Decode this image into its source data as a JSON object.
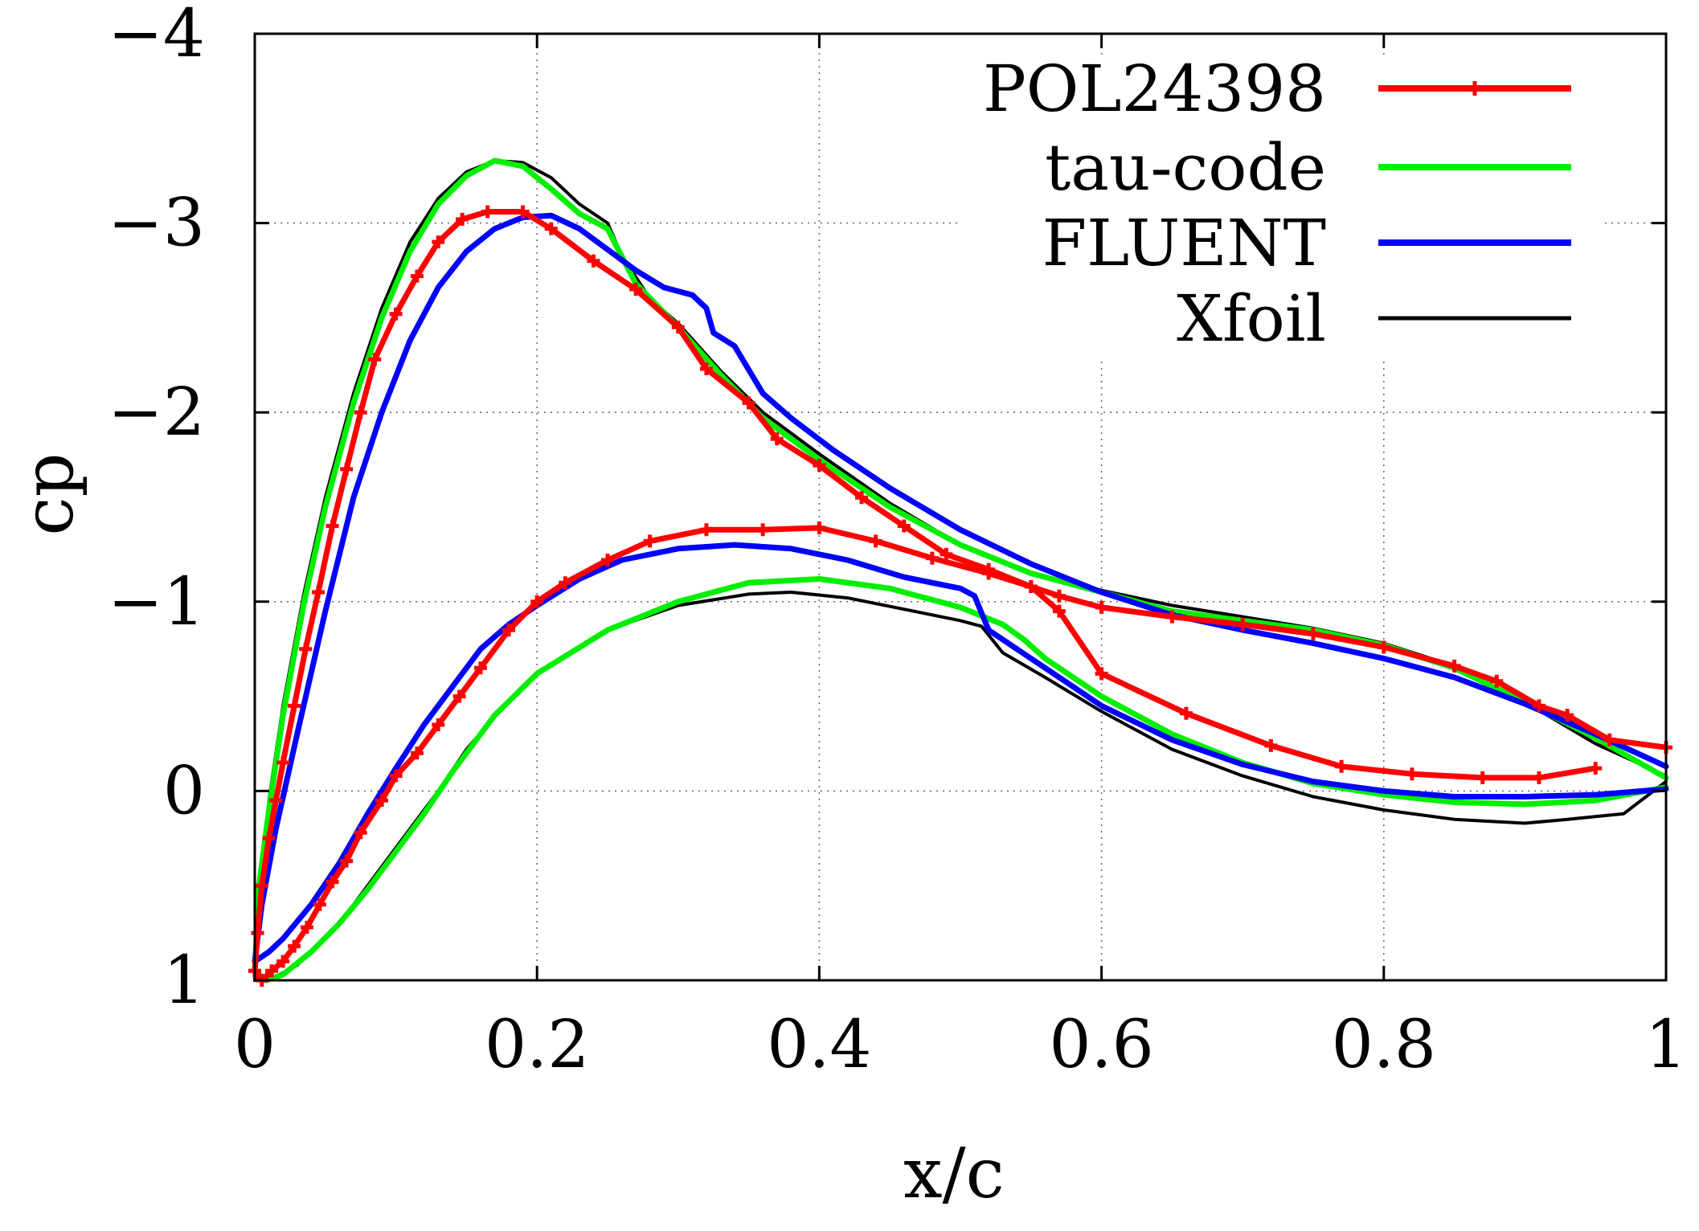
{
  "chart_data": {
    "type": "line",
    "xlabel": "x/c",
    "ylabel": "cp",
    "xlim": [
      0,
      1
    ],
    "ylim": [
      1,
      -4
    ],
    "y_inverted": true,
    "grid": true,
    "legend_position": "top-right",
    "x_ticks": [
      {
        "value": 0,
        "label": "0"
      },
      {
        "value": 0.2,
        "label": "0.2"
      },
      {
        "value": 0.4,
        "label": "0.4"
      },
      {
        "value": 0.6,
        "label": "0.6"
      },
      {
        "value": 0.8,
        "label": "0.8"
      },
      {
        "value": 1,
        "label": "1"
      }
    ],
    "y_ticks": [
      {
        "value": -4,
        "label": "−4"
      },
      {
        "value": -3,
        "label": "−3"
      },
      {
        "value": -2,
        "label": "−2"
      },
      {
        "value": -1,
        "label": "−1"
      },
      {
        "value": 0,
        "label": "0"
      },
      {
        "value": 1,
        "label": "1"
      }
    ],
    "series": [
      {
        "name": "POL24398",
        "color": "#ff0000",
        "markers": true,
        "upper": [
          [
            0,
            0.95
          ],
          [
            0.002,
            0.75
          ],
          [
            0.005,
            0.5
          ],
          [
            0.01,
            0.25
          ],
          [
            0.015,
            0.05
          ],
          [
            0.02,
            -0.15
          ],
          [
            0.028,
            -0.45
          ],
          [
            0.036,
            -0.75
          ],
          [
            0.045,
            -1.05
          ],
          [
            0.055,
            -1.4
          ],
          [
            0.065,
            -1.7
          ],
          [
            0.075,
            -2.0
          ],
          [
            0.085,
            -2.28
          ],
          [
            0.1,
            -2.52
          ],
          [
            0.115,
            -2.72
          ],
          [
            0.13,
            -2.9
          ],
          [
            0.147,
            -3.02
          ],
          [
            0.165,
            -3.06
          ],
          [
            0.19,
            -3.06
          ],
          [
            0.21,
            -2.97
          ],
          [
            0.24,
            -2.8
          ],
          [
            0.27,
            -2.65
          ],
          [
            0.3,
            -2.45
          ],
          [
            0.32,
            -2.23
          ],
          [
            0.35,
            -2.05
          ],
          [
            0.37,
            -1.86
          ],
          [
            0.4,
            -1.72
          ],
          [
            0.43,
            -1.55
          ],
          [
            0.46,
            -1.4
          ],
          [
            0.49,
            -1.25
          ],
          [
            0.52,
            -1.17
          ],
          [
            0.55,
            -1.08
          ],
          [
            0.57,
            -1.03
          ],
          [
            0.6,
            -0.97
          ],
          [
            0.65,
            -0.92
          ],
          [
            0.7,
            -0.88
          ],
          [
            0.75,
            -0.83
          ],
          [
            0.8,
            -0.76
          ],
          [
            0.85,
            -0.66
          ],
          [
            0.88,
            -0.58
          ],
          [
            0.91,
            -0.45
          ],
          [
            0.93,
            -0.4
          ],
          [
            0.96,
            -0.27
          ],
          [
            1.0,
            -0.23
          ]
        ],
        "lower": [
          [
            0,
            0.95
          ],
          [
            0.005,
            1.0
          ],
          [
            0.012,
            0.95
          ],
          [
            0.02,
            0.9
          ],
          [
            0.028,
            0.82
          ],
          [
            0.037,
            0.72
          ],
          [
            0.046,
            0.6
          ],
          [
            0.055,
            0.48
          ],
          [
            0.065,
            0.37
          ],
          [
            0.075,
            0.22
          ],
          [
            0.09,
            0.05
          ],
          [
            0.1,
            -0.08
          ],
          [
            0.115,
            -0.2
          ],
          [
            0.13,
            -0.35
          ],
          [
            0.145,
            -0.5
          ],
          [
            0.16,
            -0.65
          ],
          [
            0.18,
            -0.85
          ],
          [
            0.2,
            -1.0
          ],
          [
            0.22,
            -1.1
          ],
          [
            0.25,
            -1.22
          ],
          [
            0.28,
            -1.32
          ],
          [
            0.32,
            -1.38
          ],
          [
            0.36,
            -1.38
          ],
          [
            0.4,
            -1.39
          ],
          [
            0.44,
            -1.32
          ],
          [
            0.48,
            -1.23
          ],
          [
            0.52,
            -1.15
          ],
          [
            0.55,
            -1.08
          ],
          [
            0.57,
            -0.95
          ],
          [
            0.6,
            -0.62
          ],
          [
            0.66,
            -0.41
          ],
          [
            0.72,
            -0.24
          ],
          [
            0.77,
            -0.13
          ],
          [
            0.82,
            -0.09
          ],
          [
            0.87,
            -0.07
          ],
          [
            0.91,
            -0.07
          ],
          [
            0.95,
            -0.12
          ]
        ]
      },
      {
        "name": "tau-code",
        "color": "#00ee00",
        "markers": false,
        "upper": [
          [
            0,
            0.95
          ],
          [
            0.003,
            0.5
          ],
          [
            0.01,
            0.1
          ],
          [
            0.02,
            -0.4
          ],
          [
            0.035,
            -1.0
          ],
          [
            0.05,
            -1.5
          ],
          [
            0.07,
            -2.05
          ],
          [
            0.09,
            -2.5
          ],
          [
            0.11,
            -2.85
          ],
          [
            0.13,
            -3.1
          ],
          [
            0.15,
            -3.25
          ],
          [
            0.17,
            -3.33
          ],
          [
            0.19,
            -3.3
          ],
          [
            0.21,
            -3.18
          ],
          [
            0.23,
            -3.05
          ],
          [
            0.25,
            -2.97
          ],
          [
            0.27,
            -2.68
          ],
          [
            0.3,
            -2.45
          ],
          [
            0.33,
            -2.2
          ],
          [
            0.36,
            -1.97
          ],
          [
            0.4,
            -1.75
          ],
          [
            0.45,
            -1.5
          ],
          [
            0.5,
            -1.3
          ],
          [
            0.55,
            -1.15
          ],
          [
            0.6,
            -1.05
          ],
          [
            0.65,
            -0.95
          ],
          [
            0.7,
            -0.9
          ],
          [
            0.75,
            -0.85
          ],
          [
            0.8,
            -0.77
          ],
          [
            0.85,
            -0.65
          ],
          [
            0.9,
            -0.47
          ],
          [
            0.95,
            -0.28
          ],
          [
            1.0,
            -0.07
          ]
        ],
        "lower": [
          [
            0,
            0.95
          ],
          [
            0.008,
            1.0
          ],
          [
            0.02,
            0.97
          ],
          [
            0.04,
            0.85
          ],
          [
            0.06,
            0.7
          ],
          [
            0.08,
            0.52
          ],
          [
            0.1,
            0.32
          ],
          [
            0.12,
            0.12
          ],
          [
            0.14,
            -0.1
          ],
          [
            0.17,
            -0.4
          ],
          [
            0.2,
            -0.62
          ],
          [
            0.25,
            -0.85
          ],
          [
            0.3,
            -1.0
          ],
          [
            0.35,
            -1.1
          ],
          [
            0.4,
            -1.12
          ],
          [
            0.45,
            -1.07
          ],
          [
            0.5,
            -0.97
          ],
          [
            0.53,
            -0.88
          ],
          [
            0.545,
            -0.8
          ],
          [
            0.56,
            -0.7
          ],
          [
            0.6,
            -0.5
          ],
          [
            0.65,
            -0.3
          ],
          [
            0.7,
            -0.15
          ],
          [
            0.75,
            -0.04
          ],
          [
            0.8,
            0.02
          ],
          [
            0.85,
            0.06
          ],
          [
            0.9,
            0.07
          ],
          [
            0.95,
            0.05
          ],
          [
            1.0,
            -0.02
          ]
        ]
      },
      {
        "name": "FLUENT",
        "color": "#0000ff",
        "markers": false,
        "upper": [
          [
            0,
            0.9
          ],
          [
            0.005,
            0.6
          ],
          [
            0.015,
            0.2
          ],
          [
            0.03,
            -0.3
          ],
          [
            0.05,
            -0.95
          ],
          [
            0.07,
            -1.55
          ],
          [
            0.09,
            -2.0
          ],
          [
            0.11,
            -2.38
          ],
          [
            0.13,
            -2.66
          ],
          [
            0.15,
            -2.85
          ],
          [
            0.17,
            -2.97
          ],
          [
            0.19,
            -3.03
          ],
          [
            0.21,
            -3.04
          ],
          [
            0.23,
            -2.97
          ],
          [
            0.25,
            -2.86
          ],
          [
            0.27,
            -2.75
          ],
          [
            0.29,
            -2.66
          ],
          [
            0.31,
            -2.62
          ],
          [
            0.32,
            -2.55
          ],
          [
            0.325,
            -2.42
          ],
          [
            0.34,
            -2.35
          ],
          [
            0.36,
            -2.1
          ],
          [
            0.38,
            -1.97
          ],
          [
            0.41,
            -1.8
          ],
          [
            0.45,
            -1.6
          ],
          [
            0.5,
            -1.38
          ],
          [
            0.55,
            -1.2
          ],
          [
            0.6,
            -1.05
          ],
          [
            0.65,
            -0.93
          ],
          [
            0.7,
            -0.85
          ],
          [
            0.75,
            -0.78
          ],
          [
            0.8,
            -0.7
          ],
          [
            0.85,
            -0.6
          ],
          [
            0.9,
            -0.46
          ],
          [
            0.95,
            -0.3
          ],
          [
            1.0,
            -0.13
          ]
        ],
        "lower": [
          [
            0,
            0.9
          ],
          [
            0.01,
            0.85
          ],
          [
            0.02,
            0.78
          ],
          [
            0.04,
            0.6
          ],
          [
            0.06,
            0.38
          ],
          [
            0.08,
            0.12
          ],
          [
            0.1,
            -0.12
          ],
          [
            0.12,
            -0.35
          ],
          [
            0.14,
            -0.55
          ],
          [
            0.16,
            -0.75
          ],
          [
            0.18,
            -0.88
          ],
          [
            0.2,
            -0.98
          ],
          [
            0.23,
            -1.12
          ],
          [
            0.26,
            -1.22
          ],
          [
            0.3,
            -1.28
          ],
          [
            0.34,
            -1.3
          ],
          [
            0.38,
            -1.28
          ],
          [
            0.42,
            -1.22
          ],
          [
            0.46,
            -1.13
          ],
          [
            0.5,
            -1.07
          ],
          [
            0.51,
            -1.03
          ],
          [
            0.52,
            -0.85
          ],
          [
            0.54,
            -0.75
          ],
          [
            0.57,
            -0.6
          ],
          [
            0.6,
            -0.45
          ],
          [
            0.65,
            -0.27
          ],
          [
            0.7,
            -0.14
          ],
          [
            0.75,
            -0.05
          ],
          [
            0.8,
            0.0
          ],
          [
            0.85,
            0.03
          ],
          [
            0.9,
            0.03
          ],
          [
            0.95,
            0.02
          ],
          [
            1.0,
            -0.01
          ]
        ]
      },
      {
        "name": "Xfoil",
        "color": "#000000",
        "markers": false,
        "upper": [
          [
            0,
            1.0
          ],
          [
            0.003,
            0.6
          ],
          [
            0.01,
            0.05
          ],
          [
            0.02,
            -0.45
          ],
          [
            0.035,
            -1.05
          ],
          [
            0.05,
            -1.55
          ],
          [
            0.07,
            -2.1
          ],
          [
            0.09,
            -2.55
          ],
          [
            0.11,
            -2.9
          ],
          [
            0.13,
            -3.13
          ],
          [
            0.15,
            -3.27
          ],
          [
            0.17,
            -3.33
          ],
          [
            0.19,
            -3.32
          ],
          [
            0.21,
            -3.24
          ],
          [
            0.23,
            -3.1
          ],
          [
            0.25,
            -3.0
          ],
          [
            0.26,
            -2.83
          ],
          [
            0.28,
            -2.6
          ],
          [
            0.3,
            -2.47
          ],
          [
            0.33,
            -2.22
          ],
          [
            0.36,
            -2.0
          ],
          [
            0.4,
            -1.78
          ],
          [
            0.45,
            -1.52
          ],
          [
            0.5,
            -1.3
          ],
          [
            0.55,
            -1.15
          ],
          [
            0.6,
            -1.06
          ],
          [
            0.65,
            -0.98
          ],
          [
            0.7,
            -0.92
          ],
          [
            0.75,
            -0.86
          ],
          [
            0.8,
            -0.78
          ],
          [
            0.85,
            -0.66
          ],
          [
            0.9,
            -0.47
          ],
          [
            0.95,
            -0.25
          ],
          [
            1.0,
            -0.08
          ]
        ],
        "lower": [
          [
            0,
            1.0
          ],
          [
            0.01,
            1.0
          ],
          [
            0.03,
            0.92
          ],
          [
            0.05,
            0.78
          ],
          [
            0.07,
            0.6
          ],
          [
            0.09,
            0.4
          ],
          [
            0.11,
            0.2
          ],
          [
            0.13,
            0.0
          ],
          [
            0.15,
            -0.22
          ],
          [
            0.18,
            -0.48
          ],
          [
            0.2,
            -0.62
          ],
          [
            0.25,
            -0.85
          ],
          [
            0.3,
            -0.98
          ],
          [
            0.35,
            -1.04
          ],
          [
            0.38,
            -1.05
          ],
          [
            0.42,
            -1.02
          ],
          [
            0.46,
            -0.96
          ],
          [
            0.5,
            -0.9
          ],
          [
            0.515,
            -0.87
          ],
          [
            0.53,
            -0.73
          ],
          [
            0.56,
            -0.6
          ],
          [
            0.6,
            -0.42
          ],
          [
            0.65,
            -0.22
          ],
          [
            0.7,
            -0.08
          ],
          [
            0.75,
            0.03
          ],
          [
            0.8,
            0.1
          ],
          [
            0.85,
            0.15
          ],
          [
            0.9,
            0.17
          ],
          [
            0.93,
            0.15
          ],
          [
            0.97,
            0.12
          ],
          [
            1.0,
            -0.05
          ]
        ]
      }
    ]
  }
}
